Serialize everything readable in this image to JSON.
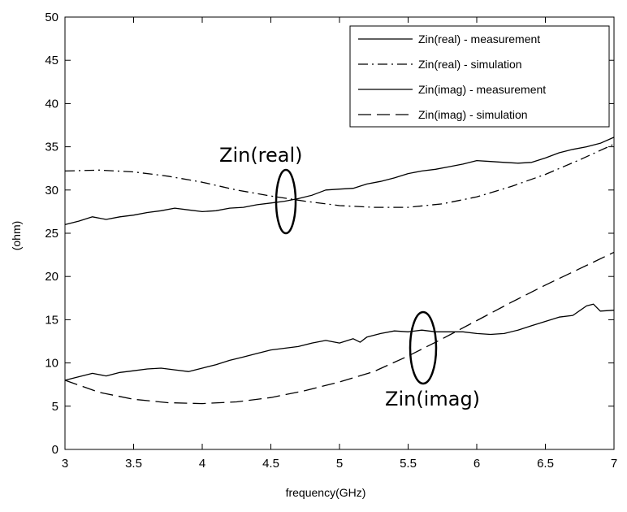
{
  "chart_data": {
    "type": "line",
    "xlabel": "frequency(GHz)",
    "ylabel": "(ohm)",
    "xlim": [
      3,
      7
    ],
    "ylim": [
      0,
      50
    ],
    "xticks": [
      "3",
      "3.5",
      "4",
      "4.5",
      "5",
      "5.5",
      "6",
      "6.5",
      "7"
    ],
    "yticks": [
      "0",
      "5",
      "10",
      "15",
      "20",
      "25",
      "30",
      "35",
      "40",
      "45",
      "50"
    ],
    "grid": false,
    "legend_position": "top-right",
    "series": [
      {
        "name": "Zin(real) - measurement",
        "dash": "solid",
        "x": [
          3.0,
          3.1,
          3.2,
          3.3,
          3.4,
          3.5,
          3.6,
          3.7,
          3.8,
          3.9,
          4.0,
          4.1,
          4.2,
          4.3,
          4.4,
          4.5,
          4.6,
          4.7,
          4.8,
          4.9,
          5.0,
          5.1,
          5.2,
          5.3,
          5.4,
          5.5,
          5.6,
          5.7,
          5.8,
          5.9,
          6.0,
          6.1,
          6.2,
          6.3,
          6.4,
          6.5,
          6.6,
          6.7,
          6.8,
          6.9,
          7.0
        ],
        "values": [
          26.0,
          26.4,
          26.9,
          26.6,
          26.9,
          27.1,
          27.4,
          27.6,
          27.9,
          27.7,
          27.5,
          27.6,
          27.9,
          28.0,
          28.3,
          28.5,
          28.7,
          29.0,
          29.4,
          30.0,
          30.1,
          30.2,
          30.7,
          31.0,
          31.4,
          31.9,
          32.2,
          32.4,
          32.7,
          33.0,
          33.4,
          33.3,
          33.2,
          33.1,
          33.2,
          33.7,
          34.3,
          34.7,
          35.0,
          35.4,
          36.1
        ]
      },
      {
        "name": "Zin(real) - simulation",
        "dash": "dashdot",
        "x": [
          3.0,
          3.25,
          3.5,
          3.75,
          4.0,
          4.25,
          4.5,
          4.75,
          5.0,
          5.25,
          5.5,
          5.75,
          6.0,
          6.25,
          6.5,
          6.75,
          7.0
        ],
        "values": [
          32.2,
          32.3,
          32.1,
          31.6,
          30.9,
          30.0,
          29.3,
          28.7,
          28.2,
          28.0,
          28.0,
          28.4,
          29.2,
          30.4,
          31.8,
          33.5,
          35.3
        ]
      },
      {
        "name": "Zin(imag) - measurement",
        "dash": "solid",
        "x": [
          3.0,
          3.1,
          3.2,
          3.3,
          3.4,
          3.5,
          3.6,
          3.7,
          3.8,
          3.9,
          4.0,
          4.1,
          4.2,
          4.3,
          4.4,
          4.5,
          4.6,
          4.7,
          4.8,
          4.9,
          5.0,
          5.1,
          5.15,
          5.2,
          5.3,
          5.4,
          5.5,
          5.6,
          5.7,
          5.8,
          5.9,
          6.0,
          6.1,
          6.2,
          6.3,
          6.4,
          6.5,
          6.6,
          6.7,
          6.8,
          6.85,
          6.9,
          7.0
        ],
        "values": [
          8.0,
          8.4,
          8.8,
          8.5,
          8.9,
          9.1,
          9.3,
          9.4,
          9.2,
          9.0,
          9.4,
          9.8,
          10.3,
          10.7,
          11.1,
          11.5,
          11.7,
          11.9,
          12.3,
          12.6,
          12.3,
          12.8,
          12.4,
          13.0,
          13.4,
          13.7,
          13.6,
          13.8,
          13.6,
          13.6,
          13.6,
          13.4,
          13.3,
          13.4,
          13.8,
          14.3,
          14.8,
          15.3,
          15.5,
          16.6,
          16.8,
          16.0,
          16.1
        ]
      },
      {
        "name": "Zin(imag) - simulation",
        "dash": "longdash",
        "x": [
          3.0,
          3.25,
          3.5,
          3.75,
          4.0,
          4.25,
          4.5,
          4.75,
          5.0,
          5.25,
          5.5,
          5.75,
          6.0,
          6.25,
          6.5,
          6.75,
          7.0
        ],
        "values": [
          8.0,
          6.6,
          5.8,
          5.4,
          5.3,
          5.5,
          6.0,
          6.8,
          7.8,
          9.0,
          10.8,
          12.8,
          14.9,
          17.0,
          19.0,
          20.9,
          22.8
        ]
      }
    ],
    "annotations": [
      {
        "text": "Zin(real)"
      },
      {
        "text": "Zin(imag)"
      }
    ]
  }
}
